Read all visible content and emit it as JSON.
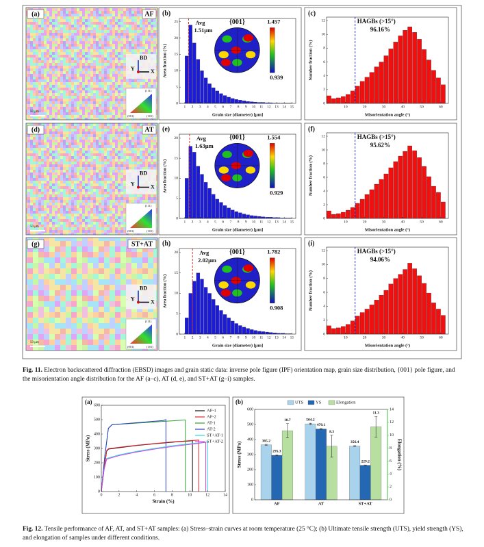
{
  "fig11": {
    "panels": [
      {
        "type": "map",
        "label": "(a)",
        "sample": "AF",
        "bd": "BD",
        "y": "Y",
        "x": "X",
        "scale": "50 μm",
        "key": [
          "(001)",
          "(101)",
          "(111)"
        ]
      },
      {
        "type": "grain",
        "label": "(b)",
        "ylabel": "Area fraction (%)",
        "xlabel": "Grain size (diameter) [μm]",
        "color": "#1b1bd8",
        "bins": [
          1,
          1.5,
          2,
          2.5,
          3,
          3.5,
          4,
          4.5,
          5,
          5.5,
          6,
          6.5,
          7,
          7.5,
          8,
          8.5,
          9,
          9.5,
          10,
          10.5,
          11,
          11.5,
          12,
          12.5,
          13,
          13.5,
          14,
          14.5,
          15
        ],
        "counts": [
          14.5,
          24,
          18.5,
          13.5,
          10,
          7.8,
          6,
          4.8,
          3.8,
          3,
          2.4,
          1.9,
          1.5,
          1.2,
          1,
          0.8,
          0.6,
          0.5,
          0.4,
          0.3,
          0.3,
          0.2,
          0.2,
          0.1,
          0.1,
          0.1,
          0.1,
          0.1
        ],
        "xlim": [
          0.3,
          15.5
        ],
        "ylim": [
          0,
          26
        ],
        "xticks": [
          1,
          2,
          3,
          4,
          5,
          6,
          7,
          8,
          9,
          10,
          11,
          12,
          13,
          14,
          15
        ],
        "yticks": [
          0,
          5,
          10,
          15,
          20,
          25
        ],
        "avg": 1.51,
        "avg_text": "Avg",
        "avg_label": "1.51μm",
        "pole": {
          "title": "{001}",
          "max": 1.457,
          "min": 0.939
        }
      },
      {
        "type": "misorientation",
        "label": "(c)",
        "ylabel": "Number fraction (%)",
        "xlabel": "Misorientation angle (°)",
        "color": "#f01010",
        "bins": [
          0,
          2.5,
          5,
          7.5,
          10,
          12.5,
          15,
          17.5,
          20,
          22.5,
          25,
          27.5,
          30,
          32.5,
          35,
          37.5,
          40,
          42.5,
          45,
          47.5,
          50,
          52.5,
          55,
          57.5,
          60,
          62.5
        ],
        "counts": [
          1.1,
          0.7,
          0.8,
          1.0,
          1.3,
          1.8,
          2.5,
          3.2,
          3.8,
          4.5,
          5.3,
          6.0,
          6.9,
          7.9,
          8.9,
          9.8,
          10.6,
          11.1,
          10.3,
          9.3,
          7.8,
          6.3,
          4.8,
          3.7,
          2.7
        ],
        "xlim": [
          0,
          64
        ],
        "ylim": [
          0,
          12.5
        ],
        "xticks": [
          10,
          20,
          30,
          40,
          50,
          60
        ],
        "yticks": [
          0,
          2,
          4,
          6,
          8,
          10,
          12
        ],
        "threshold": 15,
        "note": "HAGBs (>15°)",
        "fraction": "96.16%"
      },
      {
        "type": "map",
        "label": "(d)",
        "sample": "AT",
        "bd": "BD",
        "y": "Y",
        "x": "X",
        "scale": "50 μm",
        "key": [
          "(001)",
          "(101)",
          "(111)"
        ]
      },
      {
        "type": "grain",
        "label": "(e)",
        "ylabel": "Area fraction (%)",
        "xlabel": "Grain size (diameter) [μm]",
        "color": "#1b1bd8",
        "bins": [
          1,
          1.5,
          2,
          2.5,
          3,
          3.5,
          4,
          4.5,
          5,
          5.5,
          6,
          6.5,
          7,
          7.5,
          8,
          8.5,
          9,
          9.5,
          10,
          10.5,
          11,
          11.5,
          12,
          12.5,
          13,
          13.5,
          14,
          14.5,
          15
        ],
        "counts": [
          10,
          18,
          16.5,
          13,
          11,
          9,
          7.5,
          6,
          4.8,
          4,
          3.2,
          2.6,
          2.1,
          1.7,
          1.4,
          1.1,
          0.9,
          0.7,
          0.6,
          0.5,
          0.4,
          0.3,
          0.3,
          0.2,
          0.2,
          0.1,
          0.1,
          0.1
        ],
        "xlim": [
          0.3,
          15.5
        ],
        "ylim": [
          0,
          21
        ],
        "xticks": [
          1,
          2,
          3,
          4,
          5,
          6,
          7,
          8,
          9,
          10,
          11,
          12,
          13,
          14,
          15
        ],
        "yticks": [
          0,
          5,
          10,
          15,
          20
        ],
        "avg": 1.63,
        "avg_text": "Avg",
        "avg_label": "1.63μm",
        "pole": {
          "title": "{001}",
          "max": 1.554,
          "min": 0.929
        }
      },
      {
        "type": "misorientation",
        "label": "(f)",
        "ylabel": "Number fraction (%)",
        "xlabel": "Misorientation angle (°)",
        "color": "#f01010",
        "bins": [
          0,
          2.5,
          5,
          7.5,
          10,
          12.5,
          15,
          17.5,
          20,
          22.5,
          25,
          27.5,
          30,
          32.5,
          35,
          37.5,
          40,
          42.5,
          45,
          47.5,
          50,
          52.5,
          55,
          57.5,
          60,
          62.5
        ],
        "counts": [
          1.1,
          0.6,
          0.7,
          0.9,
          1.2,
          1.6,
          2.2,
          2.8,
          3.5,
          4.2,
          5.0,
          5.7,
          6.5,
          7.4,
          8.3,
          9.1,
          9.8,
          10.6,
          9.9,
          8.9,
          7.6,
          6.1,
          4.7,
          3.8,
          2.4
        ],
        "xlim": [
          0,
          64
        ],
        "ylim": [
          0,
          12.5
        ],
        "xticks": [
          10,
          20,
          30,
          40,
          50,
          60
        ],
        "yticks": [
          0,
          2,
          4,
          6,
          8,
          10,
          12
        ],
        "threshold": 15,
        "note": "HAGBs (>15°)",
        "fraction": "95.62%"
      },
      {
        "type": "map",
        "label": "(g)",
        "sample": "ST+AT",
        "bd": "BD",
        "y": "Y",
        "x": "X",
        "scale": "50 μm",
        "key": [
          "(001)",
          "(101)",
          "(111)"
        ]
      },
      {
        "type": "grain",
        "label": "(h)",
        "ylabel": "Area fraction (%)",
        "xlabel": "Grain size (diameter) [μm]",
        "color": "#1b1bd8",
        "bins": [
          1,
          1.5,
          2,
          2.5,
          3,
          3.5,
          4,
          4.5,
          5,
          5.5,
          6,
          6.5,
          7,
          7.5,
          8,
          8.5,
          9,
          9.5,
          10,
          10.5,
          11,
          11.5,
          12,
          12.5,
          13,
          13.5,
          14,
          14.5,
          15
        ],
        "counts": [
          4,
          10,
          13,
          15,
          13.5,
          11.5,
          10,
          8.5,
          7,
          5.8,
          4.8,
          4,
          3.2,
          2.6,
          2.1,
          1.7,
          1.4,
          1.1,
          0.9,
          0.7,
          0.6,
          0.5,
          0.4,
          0.3,
          0.2,
          0.2,
          0.1,
          0.1
        ],
        "xlim": [
          0.3,
          15.5
        ],
        "ylim": [
          0,
          21
        ],
        "xticks": [
          1,
          2,
          3,
          4,
          5,
          6,
          7,
          8,
          9,
          10,
          11,
          12,
          13,
          14,
          15
        ],
        "yticks": [
          0,
          5,
          10,
          15,
          20
        ],
        "avg": 2.02,
        "avg_text": "Avg",
        "avg_label": "2.02μm",
        "pole": {
          "title": "{001}",
          "max": 1.782,
          "min": 0.908
        }
      },
      {
        "type": "misorientation",
        "label": "(i)",
        "ylabel": "Number fraction (%)",
        "xlabel": "Misorientation angle (°)",
        "color": "#f01010",
        "bins": [
          0,
          2.5,
          5,
          7.5,
          10,
          12.5,
          15,
          17.5,
          20,
          22.5,
          25,
          27.5,
          30,
          32.5,
          35,
          37.5,
          40,
          42.5,
          45,
          47.5,
          50,
          52.5,
          55,
          57.5,
          60,
          62.5
        ],
        "counts": [
          1.2,
          0.8,
          0.9,
          1.1,
          1.4,
          1.9,
          2.6,
          3.1,
          3.6,
          4.2,
          4.9,
          5.6,
          6.3,
          7.2,
          8.0,
          8.6,
          9.3,
          10.2,
          9.4,
          8.4,
          7.3,
          5.9,
          4.5,
          3.6,
          2.7
        ],
        "xlim": [
          0,
          64
        ],
        "ylim": [
          0,
          12.5
        ],
        "xticks": [
          10,
          20,
          30,
          40,
          50,
          60
        ],
        "yticks": [
          0,
          2,
          4,
          6,
          8,
          10,
          12
        ],
        "threshold": 15,
        "note": "HAGBs (>15°)",
        "fraction": "94.06%"
      }
    ],
    "caption": {
      "label": "Fig. 11.",
      "text": "Electron backscattered diffraction (EBSD) images and grain static data: inverse pole figure (IPF) orientation map, grain size distribution, {001} pole figure, and the misorientation angle distribution for the AF (a–c), AT (d, e), and ST+AT (g–i) samples."
    }
  },
  "fig12": {
    "panels": [
      {
        "type": "line",
        "label": "(a)",
        "xlabel": "Strain (%)",
        "ylabel": "Stress (MPa)",
        "xlim": [
          0,
          14
        ],
        "ylim": [
          0,
          600
        ],
        "xticks": [
          0,
          2,
          4,
          6,
          8,
          10,
          12,
          14
        ],
        "yticks": [
          0,
          100,
          200,
          300,
          400,
          500,
          600
        ],
        "series": [
          {
            "name": "AF-1",
            "color": "#111111",
            "x": [
              0,
              0.3,
              0.6,
              0.8,
              2,
              4,
              6,
              8,
              10,
              10.3,
              10.3
            ],
            "y": [
              0,
              150,
              280,
              295,
              305,
              320,
              332,
              343,
              352,
              355,
              0
            ]
          },
          {
            "name": "AF-2",
            "color": "#e8202a",
            "x": [
              0,
              0.3,
              0.6,
              0.8,
              2,
              4,
              6,
              8,
              10,
              11,
              11
            ],
            "y": [
              0,
              150,
              285,
              298,
              308,
              322,
              334,
              345,
              354,
              358,
              0
            ]
          },
          {
            "name": "AT-1",
            "color": "#2ca02c",
            "x": [
              0,
              0.4,
              0.8,
              1.2,
              3,
              5,
              7,
              9,
              9.5,
              9.5
            ],
            "y": [
              0,
              250,
              440,
              465,
              472,
              480,
              488,
              496,
              498,
              0
            ]
          },
          {
            "name": "AT-2",
            "color": "#2a3cc8",
            "x": [
              0,
              0.4,
              0.8,
              1.2,
              3,
              5,
              7,
              7.3,
              7.3
            ],
            "y": [
              0,
              250,
              440,
              465,
              474,
              484,
              494,
              500,
              0
            ]
          },
          {
            "name": "ST+AT-1",
            "color": "#20d8e0",
            "x": [
              0,
              0.3,
              0.6,
              2,
              4,
              6,
              8,
              10,
              12,
              12
            ],
            "y": [
              0,
              150,
              230,
              255,
              280,
              300,
              318,
              332,
              345,
              0
            ]
          },
          {
            "name": "ST+AT-2",
            "color": "#e040e0",
            "x": [
              0,
              0.3,
              0.6,
              2,
              4,
              6,
              8,
              10,
              11.8,
              11.8
            ],
            "y": [
              0,
              150,
              225,
              250,
              275,
              295,
              313,
              328,
              342,
              0
            ]
          }
        ]
      },
      {
        "type": "bar",
        "label": "(b)",
        "ylabel": "Stress (MPa)",
        "y2label": "Elongation (%)",
        "categories": [
          "AF",
          "AT",
          "ST+AT"
        ],
        "ylim": [
          0,
          600
        ],
        "yticks": [
          0,
          100,
          200,
          300,
          400,
          500,
          600
        ],
        "y2lim": [
          0,
          14
        ],
        "y2ticks": [
          0,
          2,
          4,
          6,
          8,
          10,
          12,
          14
        ],
        "y2color": "#33cc33",
        "series": [
          {
            "name": "UTS",
            "color": "#a9d3ec",
            "values": [
              365.2,
              504.2,
              356.4
            ],
            "errors": [
              3,
              4,
              3
            ]
          },
          {
            "name": "YS",
            "color": "#2467b3",
            "values": [
              295.3,
              470.1,
              229.2
            ],
            "errors": [
              3,
              3,
              2
            ]
          },
          {
            "name": "Elongation",
            "color": "#b6dfa0",
            "axis": "y2",
            "values": [
              10.7,
              8.3,
              11.3
            ],
            "errors": [
              1.1,
              1.7,
              1.6
            ]
          }
        ]
      }
    ],
    "caption": {
      "label": "Fig. 12.",
      "text": "Tensile performance of AF, AT, and ST+AT samples: (a) Stress–strain curves at room temperature (25 °C); (b) Ultimate tensile strength (UTS), yield strength (YS), and elongation of samples under different conditions."
    }
  }
}
